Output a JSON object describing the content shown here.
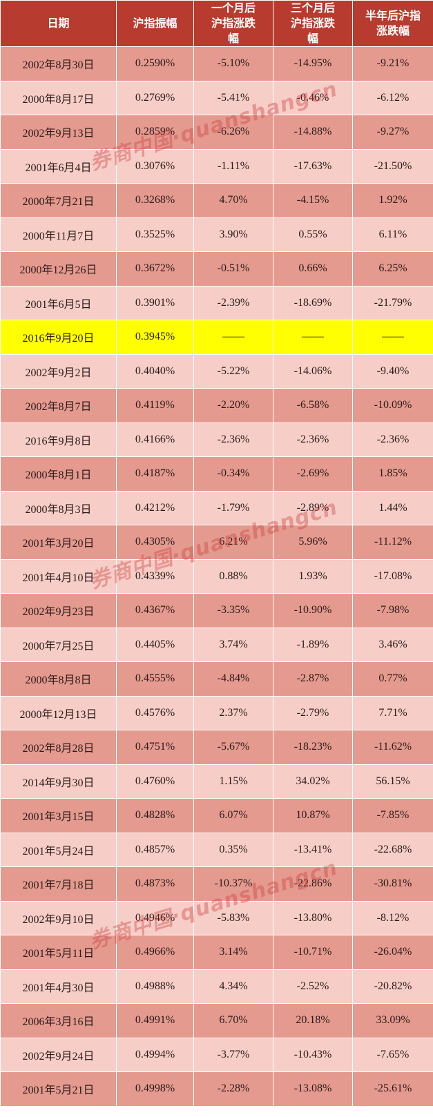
{
  "table": {
    "headers": {
      "date": "日期",
      "amplitude": "沪指振幅",
      "one_month": "一个月后沪指涨跌幅",
      "three_month": "三个月后沪指涨跌幅",
      "half_year": "半年后沪指涨跌幅"
    },
    "highlight_color": "#ffff00",
    "rows": [
      {
        "date": "2002年8月30日",
        "amplitude": "0.2590%",
        "one_month": "-5.10%",
        "three_month": "-14.95%",
        "half_year": "-9.21%"
      },
      {
        "date": "2000年8月17日",
        "amplitude": "0.2769%",
        "one_month": "-5.41%",
        "three_month": "-0.46%",
        "half_year": "-6.12%"
      },
      {
        "date": "2002年9月13日",
        "amplitude": "0.2859%",
        "one_month": "-6.26%",
        "three_month": "-14.88%",
        "half_year": "-9.27%"
      },
      {
        "date": "2001年6月4日",
        "amplitude": "0.3076%",
        "one_month": "-1.11%",
        "three_month": "-17.63%",
        "half_year": "-21.50%"
      },
      {
        "date": "2000年7月21日",
        "amplitude": "0.3268%",
        "one_month": "4.70%",
        "three_month": "-4.15%",
        "half_year": "1.92%"
      },
      {
        "date": "2000年11月7日",
        "amplitude": "0.3525%",
        "one_month": "3.90%",
        "three_month": "0.55%",
        "half_year": "6.11%"
      },
      {
        "date": "2000年12月26日",
        "amplitude": "0.3672%",
        "one_month": "-0.51%",
        "three_month": "0.66%",
        "half_year": "6.25%"
      },
      {
        "date": "2001年6月5日",
        "amplitude": "0.3901%",
        "one_month": "-2.39%",
        "three_month": "-18.69%",
        "half_year": "-21.79%"
      },
      {
        "date": "2016年9月20日",
        "amplitude": "0.3945%",
        "one_month": "——",
        "three_month": "——",
        "half_year": "——",
        "highlight": true
      },
      {
        "date": "2002年9月2日",
        "amplitude": "0.4040%",
        "one_month": "-5.22%",
        "three_month": "-14.06%",
        "half_year": "-9.40%"
      },
      {
        "date": "2002年8月7日",
        "amplitude": "0.4119%",
        "one_month": "-2.20%",
        "three_month": "-6.58%",
        "half_year": "-10.09%"
      },
      {
        "date": "2016年9月8日",
        "amplitude": "0.4166%",
        "one_month": "-2.36%",
        "three_month": "-2.36%",
        "half_year": "-2.36%"
      },
      {
        "date": "2000年8月1日",
        "amplitude": "0.4187%",
        "one_month": "-0.34%",
        "three_month": "-2.69%",
        "half_year": "1.85%"
      },
      {
        "date": "2000年8月3日",
        "amplitude": "0.4212%",
        "one_month": "-1.79%",
        "three_month": "-2.89%",
        "half_year": "1.44%"
      },
      {
        "date": "2001年3月20日",
        "amplitude": "0.4305%",
        "one_month": "6.21%",
        "three_month": "5.96%",
        "half_year": "-11.12%"
      },
      {
        "date": "2001年4月10日",
        "amplitude": "0.4339%",
        "one_month": "0.88%",
        "three_month": "1.93%",
        "half_year": "-17.08%"
      },
      {
        "date": "2002年9月23日",
        "amplitude": "0.4367%",
        "one_month": "-3.35%",
        "three_month": "-10.90%",
        "half_year": "-7.98%"
      },
      {
        "date": "2000年7月25日",
        "amplitude": "0.4405%",
        "one_month": "3.74%",
        "three_month": "-1.89%",
        "half_year": "3.46%"
      },
      {
        "date": "2000年8月8日",
        "amplitude": "0.4555%",
        "one_month": "-4.84%",
        "three_month": "-2.87%",
        "half_year": "0.77%"
      },
      {
        "date": "2000年12月13日",
        "amplitude": "0.4576%",
        "one_month": "2.37%",
        "three_month": "-2.79%",
        "half_year": "7.71%"
      },
      {
        "date": "2002年8月28日",
        "amplitude": "0.4751%",
        "one_month": "-5.67%",
        "three_month": "-18.23%",
        "half_year": "-11.62%"
      },
      {
        "date": "2014年9月30日",
        "amplitude": "0.4760%",
        "one_month": "1.15%",
        "three_month": "34.02%",
        "half_year": "56.15%"
      },
      {
        "date": "2001年3月15日",
        "amplitude": "0.4828%",
        "one_month": "6.07%",
        "three_month": "10.87%",
        "half_year": "-7.85%"
      },
      {
        "date": "2001年5月24日",
        "amplitude": "0.4857%",
        "one_month": "0.35%",
        "three_month": "-13.41%",
        "half_year": "-22.68%"
      },
      {
        "date": "2001年7月18日",
        "amplitude": "0.4873%",
        "one_month": "-10.37%",
        "three_month": "-22.86%",
        "half_year": "-30.81%"
      },
      {
        "date": "2002年9月10日",
        "amplitude": "0.4946%",
        "one_month": "-5.83%",
        "three_month": "-13.80%",
        "half_year": "-8.12%"
      },
      {
        "date": "2001年5月11日",
        "amplitude": "0.4966%",
        "one_month": "3.14%",
        "three_month": "-10.71%",
        "half_year": "-26.04%"
      },
      {
        "date": "2001年4月30日",
        "amplitude": "0.4988%",
        "one_month": "4.34%",
        "three_month": "-2.52%",
        "half_year": "-20.82%"
      },
      {
        "date": "2006年3月16日",
        "amplitude": "0.4991%",
        "one_month": "6.70%",
        "three_month": "20.18%",
        "half_year": "33.09%"
      },
      {
        "date": "2002年9月24日",
        "amplitude": "0.4994%",
        "one_month": "-3.77%",
        "three_month": "-10.43%",
        "half_year": "-7.65%"
      },
      {
        "date": "2001年5月21日",
        "amplitude": "0.4998%",
        "one_month": "-2.28%",
        "three_month": "-13.08%",
        "half_year": "-25.61%"
      }
    ]
  },
  "watermark": {
    "text": "券商中国·quanshangcn"
  }
}
